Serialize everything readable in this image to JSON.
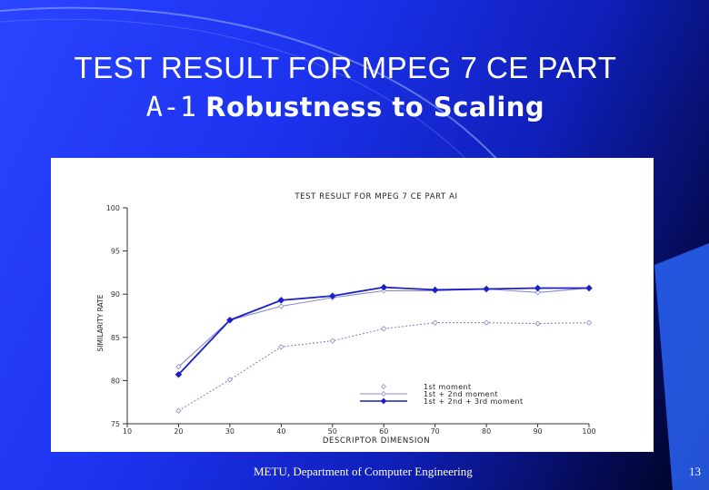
{
  "slide": {
    "title_line1": "TEST RESULT FOR MPEG 7 CE PART",
    "title_line2_prefix": "A-1",
    "title_line2_bold": "Robustness to Scaling",
    "footer": "METU, Department of Computer Engineering",
    "page_number": "13",
    "colors": {
      "background": "#1c33f0",
      "panel": "#ffffff",
      "series_dark": "#1a1fc8",
      "series_light": "#8a8ac8"
    }
  },
  "chart_data": {
    "type": "line",
    "title": "TEST RESULT FOR MPEG 7 CE PART AI",
    "xlabel": "DESCRIPTOR DIMENSION",
    "ylabel": "SIMILARITY RATE",
    "xlim": [
      10,
      100
    ],
    "ylim": [
      75,
      100
    ],
    "x_ticks": [
      10,
      20,
      30,
      40,
      50,
      60,
      70,
      80,
      90,
      100
    ],
    "y_ticks": [
      75,
      80,
      85,
      90,
      95,
      100
    ],
    "legend_position": "bottom-right",
    "grid": false,
    "series": [
      {
        "name": "1st moment",
        "x": [
          20,
          30,
          40,
          50,
          60,
          70,
          80,
          90,
          100
        ],
        "values": [
          76.5,
          80.1,
          83.9,
          84.6,
          86.0,
          86.7,
          86.7,
          86.6,
          86.7
        ],
        "marker": "open-diamond",
        "line": "dotted",
        "color": "#8a8ac8"
      },
      {
        "name": "1st + 2nd moment",
        "x": [
          20,
          30,
          40,
          50,
          60,
          70,
          80,
          90,
          100
        ],
        "values": [
          81.6,
          87.0,
          88.6,
          89.6,
          90.4,
          90.4,
          90.6,
          90.2,
          90.7
        ],
        "marker": "open-diamond",
        "line": "solid",
        "color": "#8a8ac8"
      },
      {
        "name": "1st + 2nd + 3rd moment",
        "x": [
          20,
          30,
          40,
          50,
          60,
          70,
          80,
          90,
          100
        ],
        "values": [
          80.7,
          87.0,
          89.3,
          89.8,
          90.8,
          90.5,
          90.6,
          90.7,
          90.7
        ],
        "marker": "filled-diamond",
        "line": "solid",
        "color": "#1a1fc8"
      }
    ]
  }
}
